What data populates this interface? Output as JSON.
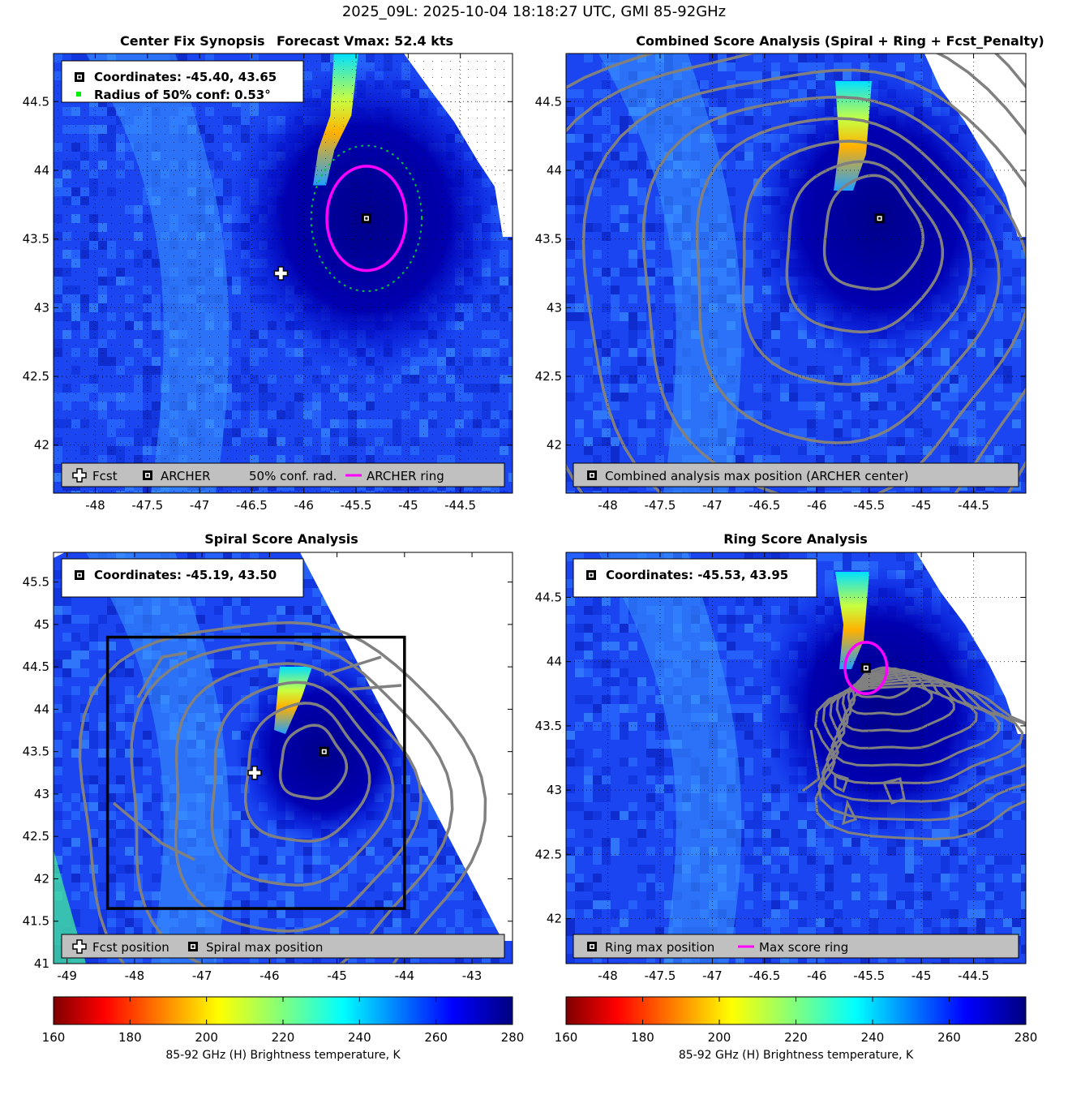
{
  "figure_title": "2025_09L: 2025-10-04 18:18:27 UTC, GMI 85-92GHz",
  "colors": {
    "archer_ring": "#ff00ff",
    "contour": "#808080",
    "conf_circle": "#00cc33",
    "legend_bg": "#c0c0c0"
  },
  "chart_data": [
    {
      "id": "center_fix",
      "type": "heatmap",
      "title_left": "Center Fix Synopsis",
      "title_right": "Forecast Vmax: 52.4 kts",
      "xlim": [
        -48.4,
        -44.0
      ],
      "ylim": [
        41.65,
        44.85
      ],
      "xticks": [
        "-48",
        "-47.5",
        "-47",
        "-46.5",
        "-46",
        "-45.5",
        "-45",
        "-44.5"
      ],
      "xtick_values": [
        -48,
        -47.5,
        -47,
        -46.5,
        -46,
        -45.5,
        -45,
        -44.5
      ],
      "yticks": [
        "42",
        "42.5",
        "43",
        "43.5",
        "44",
        "44.5"
      ],
      "ytick_values": [
        42,
        42.5,
        43,
        43.5,
        44,
        44.5
      ],
      "grid": true,
      "info_lines": [
        "Coordinates: -45.40, 43.65",
        "Radius of 50% conf: 0.53°"
      ],
      "legend": [
        "Fcst",
        "ARCHER",
        "50% conf. rad.",
        "ARCHER ring"
      ],
      "archer_center": [
        -45.4,
        43.65
      ],
      "fcst_position": [
        -46.22,
        43.25
      ],
      "archer_ring_radius_deg": 0.38,
      "conf_radius_deg": 0.53,
      "warm_streak": [
        [
          -45.65,
          44.7
        ],
        [
          -45.7,
          44.4
        ],
        [
          -45.8,
          44.15
        ],
        [
          -45.85,
          43.95
        ]
      ]
    },
    {
      "id": "combined_score",
      "type": "heatmap",
      "title": "Combined Score Analysis (Spiral + Ring + Fcst_Penalty)",
      "xlim": [
        -48.4,
        -44.0
      ],
      "ylim": [
        41.65,
        44.85
      ],
      "xticks": [
        "-48",
        "-47.5",
        "-47",
        "-46.5",
        "-46",
        "-45.5",
        "-45",
        "-44.5"
      ],
      "xtick_values": [
        -48,
        -47.5,
        -47,
        -46.5,
        -46,
        -45.5,
        -45,
        -44.5
      ],
      "yticks": [
        "42",
        "42.5",
        "43",
        "43.5",
        "44",
        "44.5"
      ],
      "ytick_values": [
        42,
        42.5,
        43,
        43.5,
        44,
        44.5
      ],
      "grid": true,
      "legend": [
        "Combined analysis max position (ARCHER center)"
      ],
      "max_position": [
        -45.4,
        43.65
      ]
    },
    {
      "id": "spiral_score",
      "type": "heatmap",
      "title": "Spiral Score Analysis",
      "xlim": [
        -49.2,
        -42.4
      ],
      "ylim": [
        41.0,
        45.85
      ],
      "xticks": [
        "-49",
        "-48",
        "-47",
        "-46",
        "-45",
        "-44",
        "-43"
      ],
      "xtick_values": [
        -49,
        -48,
        -47,
        -46,
        -45,
        -44,
        -43
      ],
      "yticks": [
        "41",
        "41.5",
        "42",
        "42.5",
        "43",
        "43.5",
        "44",
        "44.5",
        "45",
        "45.5"
      ],
      "ytick_values": [
        41,
        41.5,
        42,
        42.5,
        43,
        43.5,
        44,
        44.5,
        45,
        45.5
      ],
      "grid": false,
      "info_lines": [
        "Coordinates: -45.19, 43.50"
      ],
      "legend": [
        "Fcst position",
        "Spiral max position"
      ],
      "max_position": [
        -45.19,
        43.5
      ],
      "fcst_position": [
        -46.22,
        43.25
      ],
      "search_box": [
        -48.4,
        41.65,
        -44.0,
        44.85
      ]
    },
    {
      "id": "ring_score",
      "type": "heatmap",
      "title": "Ring Score Analysis",
      "xlim": [
        -48.4,
        -44.0
      ],
      "ylim": [
        41.65,
        44.85
      ],
      "xticks": [
        "-48",
        "-47.5",
        "-47",
        "-46.5",
        "-46",
        "-45.5",
        "-45",
        "-44.5"
      ],
      "xtick_values": [
        -48,
        -47.5,
        -47,
        -46.5,
        -46,
        -45.5,
        -45,
        -44.5
      ],
      "yticks": [
        "42",
        "42.5",
        "43",
        "43.5",
        "44",
        "44.5"
      ],
      "ytick_values": [
        42,
        42.5,
        43,
        43.5,
        44,
        44.5
      ],
      "grid": true,
      "info_lines": [
        "Coordinates: -45.53, 43.95"
      ],
      "legend": [
        "Ring max position",
        "Max score ring"
      ],
      "max_position": [
        -45.53,
        43.95
      ],
      "ring_radius_deg": 0.2
    }
  ],
  "colorbar": {
    "label": "85-92 GHz (H) Brightness temperature, K",
    "ticks": [
      "160",
      "180",
      "200",
      "220",
      "240",
      "260",
      "280"
    ],
    "range": [
      160,
      280
    ],
    "colormap": "jet_reversed"
  }
}
